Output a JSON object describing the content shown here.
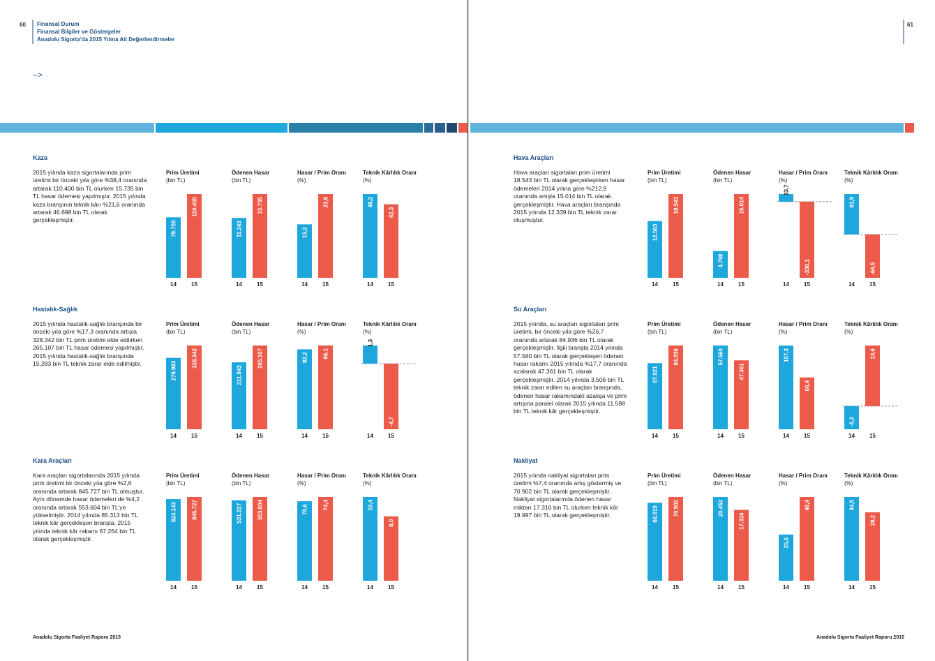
{
  "header": {
    "page_left": "60",
    "title": "Finansal Durum",
    "subtitle": "Finansal Bilgiler ve Göstergeler",
    "subsubtitle": "Anadolu Sigorta'da 2015 Yılına Ait Değerlendirmeler",
    "arrow": "-->",
    "page_right": "61"
  },
  "footer": {
    "left": "Anadolu Sigorta Faaliyet Raporu 2015",
    "right": "Anadolu Sigorta Faaliyet Raporu 2015"
  },
  "sections": [
    {
      "title": "Kaza",
      "text": "2015 yılında kaza sigortalarında prim üretimi bir önceki yıla göre %38,4 oranında artarak 110.400 bin TL olurken 15.735 bin TL hasar ödemesi yapılmıştır. 2015 yılında kaza branşının teknik kârı %21,6 oranında artarak 46.698 bin TL olarak gerçekleşmiştir."
    },
    {
      "title": "Hastalık-Sağlık",
      "text": "2015 yılında hastalık-sağlık branşında bir önceki yıla göre %17,3 oranında artışla 328.342 bin TL prim üretimi elde edilirken 265.107 bin TL hasar ödemesi yapılmıştır. 2015 yılında hastalık-sağlık branşında 15.283 bin TL teknik zarar elde edilmiştir."
    },
    {
      "title": "Kara Araçları",
      "text": "Kara araçları sigortalarında 2015 yılında prim üretimi bir önceki yıla göre %2,6 oranında artarak 845.727 bin TL olmuştur. Aynı dönemde hasar ödemeleri de %4,2 oranında artarak 553.604 bin TL'ye yükselmiştir. 2014 yılında 85.313 bin TL teknik kâr gerçekleşen branşta, 2015 yılında teknik kâr rakamı 67.264 bin TL olarak gerçekleşmiştir."
    },
    {
      "title": "Hava Araçları",
      "text": "Hava araçları sigortaları prim üretimi 18.543 bin TL olarak gerçekleşirken hasar ödemeleri 2014 yılına göre %212,9 oranında artışla 15.014 bin TL olarak gerçekleşmiştir. Hava araçları branşında 2015 yılında 12.339 bin TL teknik zarar oluşmuştur."
    },
    {
      "title": "Su Araçları",
      "text": "2015 yılında, su araçları sigortaları prim üretimi, bir önceki yıla göre %26,7 oranında artarak 84.936 bin TL olarak gerçekleşmiştir. İlgili branşta 2014 yılında 57.560 bin TL olarak gerçekleşen ödenen hasar rakamı 2015 yılında %17,7 oranında azalarak 47.361 bin TL olarak gerçekleşmiştir. 2014 yılında 3.506 bin TL teknik zarar edilen su araçları branşında, ödenen hasar rakamındaki azalışa ve prim artışına paralel olarak 2015 yılında 11.588 bin TL teknik kâr gerçekleşmiştir."
    },
    {
      "title": "Nakliyat",
      "text": "2015 yılında nakliyat sigortaları prim üretimi %7,4 oranında artış göstermiş ve 70.902 bin TL olarak gerçekleşmiştir. Nakliyat sigortalarında ödenen hasar miktarı 17.316 bin TL olurken teknik kâr 19.997 bin TL olarak gerçekleşmiştir."
    }
  ],
  "chart_data": [
    {
      "type": "bar",
      "title": "Prim Üretimi",
      "subtitle": "(bin TL)",
      "categories": [
        "14",
        "15"
      ],
      "values": [
        79755,
        110400
      ],
      "value_labels": [
        "79.755",
        "110.400"
      ],
      "colors": [
        "#1ea7dc",
        "#ec5a4a"
      ]
    },
    {
      "type": "bar",
      "title": "Ödenen Hasar",
      "subtitle": "(bin TL)",
      "categories": [
        "14",
        "15"
      ],
      "values": [
        11243,
        15735
      ],
      "value_labels": [
        "11.243",
        "15.735"
      ],
      "colors": [
        "#1ea7dc",
        "#ec5a4a"
      ]
    },
    {
      "type": "bar",
      "title": "Hasar / Prim Oranı",
      "subtitle": "(%)",
      "categories": [
        "14",
        "15"
      ],
      "values": [
        15.2,
        23.8
      ],
      "value_labels": [
        "15,2",
        "23,8"
      ],
      "colors": [
        "#1ea7dc",
        "#ec5a4a"
      ]
    },
    {
      "type": "bar",
      "title": "Teknik Kârlılık Oranı",
      "subtitle": "(%)",
      "categories": [
        "14",
        "15"
      ],
      "values": [
        48.2,
        42.3
      ],
      "value_labels": [
        "48,2",
        "42,3"
      ],
      "colors": [
        "#1ea7dc",
        "#ec5a4a"
      ]
    },
    {
      "type": "bar",
      "title": "Prim Üretimi",
      "subtitle": "(bin TL)",
      "categories": [
        "14",
        "15"
      ],
      "values": [
        279983,
        328342
      ],
      "value_labels": [
        "279.983",
        "328.342"
      ],
      "colors": [
        "#1ea7dc",
        "#ec5a4a"
      ]
    },
    {
      "type": "bar",
      "title": "Ödenen Hasar",
      "subtitle": "(bin TL)",
      "categories": [
        "14",
        "15"
      ],
      "values": [
        211843,
        265107
      ],
      "value_labels": [
        "211.843",
        "265.107"
      ],
      "colors": [
        "#1ea7dc",
        "#ec5a4a"
      ]
    },
    {
      "type": "bar",
      "title": "Hasar / Prim Oranı",
      "subtitle": "(%)",
      "categories": [
        "14",
        "15"
      ],
      "values": [
        82.2,
        86.1
      ],
      "value_labels": [
        "82,2",
        "86,1"
      ],
      "colors": [
        "#1ea7dc",
        "#ec5a4a"
      ]
    },
    {
      "type": "bar",
      "title": "Teknik Kârlılık Oranı",
      "subtitle": "(%)",
      "categories": [
        "14",
        "15"
      ],
      "values": [
        1.3,
        -4.7
      ],
      "value_labels": [
        "1,3",
        "-4,7"
      ],
      "colors": [
        "#1ea7dc",
        "#ec5a4a"
      ]
    },
    {
      "type": "bar",
      "title": "Prim Üretimi",
      "subtitle": "(bin TL)",
      "categories": [
        "14",
        "15"
      ],
      "values": [
        824143,
        845727
      ],
      "value_labels": [
        "824.143",
        "845.727"
      ],
      "colors": [
        "#1ea7dc",
        "#ec5a4a"
      ]
    },
    {
      "type": "bar",
      "title": "Ödenen Hasar",
      "subtitle": "(bin TL)",
      "categories": [
        "14",
        "15"
      ],
      "values": [
        531227,
        553604
      ],
      "value_labels": [
        "531.227",
        "553.604"
      ],
      "colors": [
        "#1ea7dc",
        "#ec5a4a"
      ]
    },
    {
      "type": "bar",
      "title": "Hasar / Prim Oranı",
      "subtitle": "(%)",
      "categories": [
        "14",
        "15"
      ],
      "values": [
        70.6,
        74.4
      ],
      "value_labels": [
        "70,6",
        "74,4"
      ],
      "colors": [
        "#1ea7dc",
        "#ec5a4a"
      ]
    },
    {
      "type": "bar",
      "title": "Teknik Kârlılık Oranı",
      "subtitle": "(%)",
      "categories": [
        "14",
        "15"
      ],
      "values": [
        10.4,
        8.0
      ],
      "value_labels": [
        "10,4",
        "8,0"
      ],
      "colors": [
        "#1ea7dc",
        "#ec5a4a"
      ]
    },
    {
      "type": "bar",
      "title": "Prim Üretimi",
      "subtitle": "(bin TL)",
      "categories": [
        "14",
        "15"
      ],
      "values": [
        12563,
        18543
      ],
      "value_labels": [
        "12.563",
        "18.543"
      ],
      "colors": [
        "#1ea7dc",
        "#ec5a4a"
      ]
    },
    {
      "type": "bar",
      "title": "Ödenen Hasar",
      "subtitle": "(bin TL)",
      "categories": [
        "14",
        "15"
      ],
      "values": [
        4798,
        15014
      ],
      "value_labels": [
        "4.798",
        "15.014"
      ],
      "colors": [
        "#1ea7dc",
        "#ec5a4a"
      ]
    },
    {
      "type": "bar",
      "title": "Hasar / Prim Oranı",
      "subtitle": "(%)",
      "categories": [
        "14",
        "15"
      ],
      "values": [
        33.7,
        -336.1
      ],
      "value_labels": [
        "33,7",
        "-336,1"
      ],
      "colors": [
        "#1ea7dc",
        "#ec5a4a"
      ]
    },
    {
      "type": "bar",
      "title": "Teknik Kârlılık Oranı",
      "subtitle": "(%)",
      "categories": [
        "14",
        "15"
      ],
      "values": [
        61.9,
        -66.5
      ],
      "value_labels": [
        "61,9",
        "-66,5"
      ],
      "colors": [
        "#1ea7dc",
        "#ec5a4a"
      ]
    },
    {
      "type": "bar",
      "title": "Prim Üretimi",
      "subtitle": "(bin TL)",
      "categories": [
        "14",
        "15"
      ],
      "values": [
        67021,
        84936
      ],
      "value_labels": [
        "67.021",
        "84.936"
      ],
      "colors": [
        "#1ea7dc",
        "#ec5a4a"
      ]
    },
    {
      "type": "bar",
      "title": "Ödenen Hasar",
      "subtitle": "(bin TL)",
      "categories": [
        "14",
        "15"
      ],
      "values": [
        57560,
        47361
      ],
      "value_labels": [
        "57.560",
        "47.361"
      ],
      "colors": [
        "#1ea7dc",
        "#ec5a4a"
      ]
    },
    {
      "type": "bar",
      "title": "Hasar / Prim Oranı",
      "subtitle": "(%)",
      "categories": [
        "14",
        "15"
      ],
      "values": [
        107.3,
        66.4
      ],
      "value_labels": [
        "107,3",
        "66,4"
      ],
      "colors": [
        "#1ea7dc",
        "#ec5a4a"
      ]
    },
    {
      "type": "bar",
      "title": "Teknik Kârlılık Oranı",
      "subtitle": "(%)",
      "categories": [
        "14",
        "15"
      ],
      "values": [
        -5.2,
        13.6
      ],
      "value_labels": [
        "-5,2",
        "13,6"
      ],
      "colors": [
        "#1ea7dc",
        "#ec5a4a"
      ]
    },
    {
      "type": "bar",
      "title": "Prim Üretimi",
      "subtitle": "(bin TL)",
      "categories": [
        "14",
        "15"
      ],
      "values": [
        66019,
        70902
      ],
      "value_labels": [
        "66.019",
        "70.902"
      ],
      "colors": [
        "#1ea7dc",
        "#ec5a4a"
      ]
    },
    {
      "type": "bar",
      "title": "Ödenen Hasar",
      "subtitle": "(bin TL)",
      "categories": [
        "14",
        "15"
      ],
      "values": [
        20452,
        17316
      ],
      "value_labels": [
        "20.452",
        "17.316"
      ],
      "colors": [
        "#1ea7dc",
        "#ec5a4a"
      ]
    },
    {
      "type": "bar",
      "title": "Hasar / Prim Oranı",
      "subtitle": "(%)",
      "categories": [
        "14",
        "15"
      ],
      "values": [
        25.6,
        46.4
      ],
      "value_labels": [
        "25,6",
        "46,4"
      ],
      "colors": [
        "#1ea7dc",
        "#ec5a4a"
      ]
    },
    {
      "type": "bar",
      "title": "Teknik Kârlılık Oranı",
      "subtitle": "(%)",
      "categories": [
        "14",
        "15"
      ],
      "values": [
        34.5,
        28.2
      ],
      "value_labels": [
        "34,5",
        "28,2"
      ],
      "colors": [
        "#1ea7dc",
        "#ec5a4a"
      ]
    }
  ]
}
